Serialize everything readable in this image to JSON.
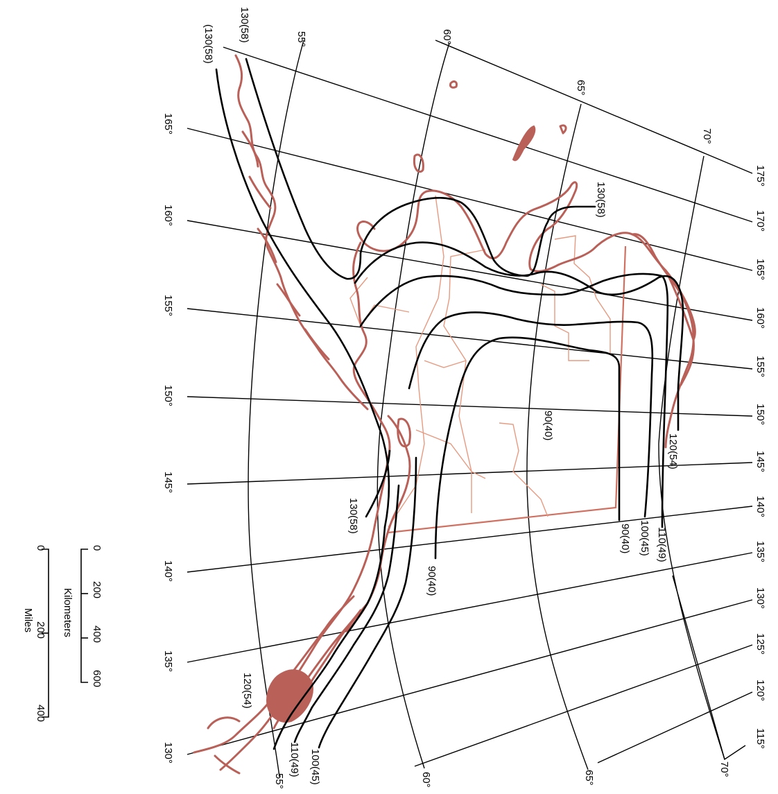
{
  "map": {
    "lat_labels": {
      "top": [
        "55°",
        "60°",
        "65°",
        "70°"
      ],
      "bottom": [
        "55°",
        "60°",
        "65°",
        "70°"
      ]
    },
    "lon_labels": {
      "left": [
        "165°",
        "160°",
        "155°",
        "150°",
        "145°",
        "140°",
        "135°",
        "130°"
      ],
      "right": [
        "175°",
        "170°",
        "165°",
        "160°",
        "155°",
        "150°",
        "145°",
        "140°",
        "135°",
        "130°",
        "125°",
        "120°",
        "115°"
      ]
    },
    "isotach_labels": {
      "top_outer": "(130(58)",
      "top_inner": "130(58)",
      "north_130": "130(58)",
      "north_120": "120(54)",
      "north_110": "110(49)",
      "north_100": "100(45)",
      "north_90": "90(40)",
      "center_90": "90(40)",
      "south_90": "90(40)",
      "south_130": "130(58)",
      "south_120": "120(54)",
      "south_110": "110(49)",
      "south_100": "100(45)"
    },
    "colors": {
      "coastline": "#b96058",
      "borders": "#e69a80",
      "lines": "#000000"
    }
  },
  "scale": {
    "km_ticks": [
      "0",
      "200",
      "400",
      "600"
    ],
    "km_label": "Kilometers",
    "mi_ticks": [
      "0",
      "200",
      "400"
    ],
    "mi_label": "Miles"
  }
}
